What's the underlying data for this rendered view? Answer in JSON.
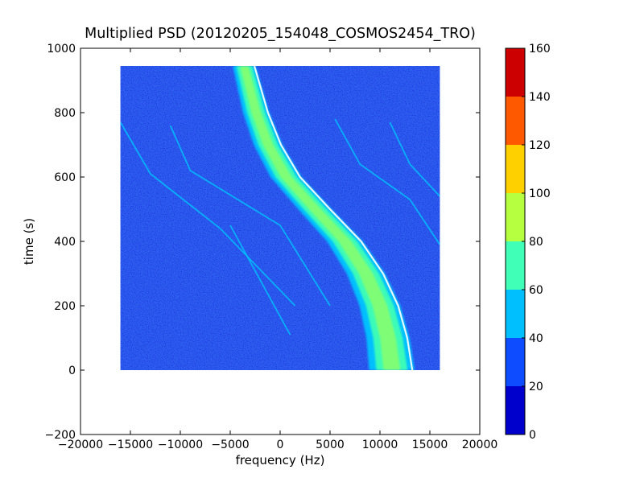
{
  "chart_data": {
    "type": "heatmap",
    "title": "Multiplied PSD (20120205_154048_COSMOS2454_TRO)",
    "xlabel": "frequency (Hz)",
    "ylabel": "time (s)",
    "xlim": [
      -20000,
      20000
    ],
    "ylim": [
      -200,
      1000
    ],
    "xticks": [
      -20000,
      -15000,
      -10000,
      -5000,
      0,
      5000,
      10000,
      15000,
      20000
    ],
    "xtick_labels": [
      "−20000",
      "−15000",
      "−10000",
      "−5000",
      "0",
      "5000",
      "10000",
      "15000",
      "20000"
    ],
    "yticks": [
      -200,
      0,
      200,
      400,
      600,
      800,
      1000
    ],
    "ytick_labels": [
      "−200",
      "0",
      "200",
      "400",
      "600",
      "800",
      "1000"
    ],
    "data_extent": {
      "x": [
        -16000,
        16000
      ],
      "y": [
        0,
        945
      ]
    },
    "background_color": "#2e5ff0",
    "main_band": {
      "shape": "s-curve",
      "center_points": [
        {
          "t": 945,
          "f": -3600
        },
        {
          "t": 800,
          "f": -2400
        },
        {
          "t": 700,
          "f": -1200
        },
        {
          "t": 600,
          "f": 600
        },
        {
          "t": 500,
          "f": 3500
        },
        {
          "t": 400,
          "f": 6500
        },
        {
          "t": 300,
          "f": 8600
        },
        {
          "t": 200,
          "f": 10000
        },
        {
          "t": 100,
          "f": 10800
        },
        {
          "t": 0,
          "f": 11200
        }
      ],
      "peak_level": 85
    },
    "faint_traces": [
      {
        "points": [
          {
            "f": -16000,
            "t": 770
          },
          {
            "f": -13000,
            "t": 610
          },
          {
            "f": -6000,
            "t": 440
          },
          {
            "f": 1500,
            "t": 200
          }
        ]
      },
      {
        "points": [
          {
            "f": -11000,
            "t": 760
          },
          {
            "f": -9000,
            "t": 620
          },
          {
            "f": 0,
            "t": 450
          },
          {
            "f": 5000,
            "t": 200
          }
        ]
      },
      {
        "points": [
          {
            "f": -5000,
            "t": 450
          },
          {
            "f": 1000,
            "t": 110
          }
        ]
      },
      {
        "points": [
          {
            "f": 5500,
            "t": 780
          },
          {
            "f": 8000,
            "t": 640
          },
          {
            "f": 13000,
            "t": 530
          },
          {
            "f": 16000,
            "t": 390
          }
        ]
      },
      {
        "points": [
          {
            "f": 11000,
            "t": 770
          },
          {
            "f": 13000,
            "t": 640
          },
          {
            "f": 16000,
            "t": 540
          }
        ]
      }
    ],
    "colorbar": {
      "ticks": [
        "0",
        "20",
        "40",
        "60",
        "80",
        "100",
        "120",
        "140",
        "160"
      ],
      "levels": [
        {
          "from": 0,
          "to": 20,
          "color": "#0000cd"
        },
        {
          "from": 20,
          "to": 40,
          "color": "#0d4cff"
        },
        {
          "from": 40,
          "to": 60,
          "color": "#00bfff"
        },
        {
          "from": 60,
          "to": 80,
          "color": "#40ffb6"
        },
        {
          "from": 80,
          "to": 100,
          "color": "#b6ff40"
        },
        {
          "from": 100,
          "to": 120,
          "color": "#ffd000"
        },
        {
          "from": 120,
          "to": 140,
          "color": "#ff5900"
        },
        {
          "from": 140,
          "to": 160,
          "color": "#cd0000"
        }
      ]
    }
  }
}
